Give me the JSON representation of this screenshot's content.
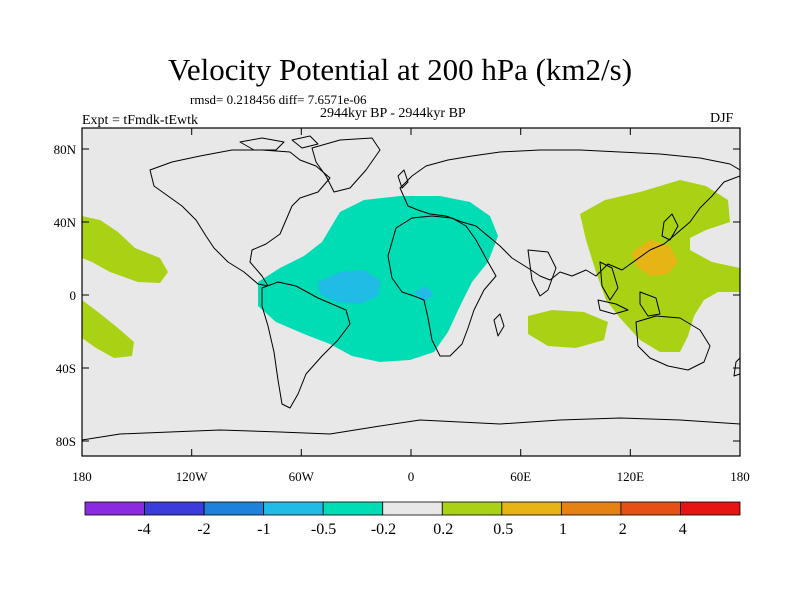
{
  "figure": {
    "title": "Velocity Potential at 200 hPa (km2/s)",
    "stats": "rmsd= 0.218456 diff= 7.6571e-06",
    "period": "2944kyr BP - 2944kyr BP",
    "experiment": "Expt = tFmdk-tEwtk",
    "season": "DJF"
  },
  "axes": {
    "x_ticks": [
      "180",
      "120W",
      "60W",
      "0",
      "60E",
      "120E",
      "180"
    ],
    "y_ticks": [
      "80N",
      "40N",
      "0",
      "40S",
      "80S"
    ]
  },
  "colorbar": {
    "colors": [
      "#8a2be2",
      "#3c3cdc",
      "#1e82dc",
      "#20bce6",
      "#00dcb4",
      "#e8e8e8",
      "#aad214",
      "#e6b414",
      "#e68214",
      "#e65014",
      "#e61414"
    ],
    "labels": [
      "-4",
      "-2",
      "-1",
      "-0.5",
      "-0.2",
      "0.2",
      "0.5",
      "1",
      "2",
      "4"
    ]
  },
  "map": {
    "background": "#e8e8e8",
    "positive_weak": "#aad214",
    "positive_mid": "#e6b414",
    "negative_weak": "#00dcb4",
    "negative_mid": "#20bce6"
  }
}
